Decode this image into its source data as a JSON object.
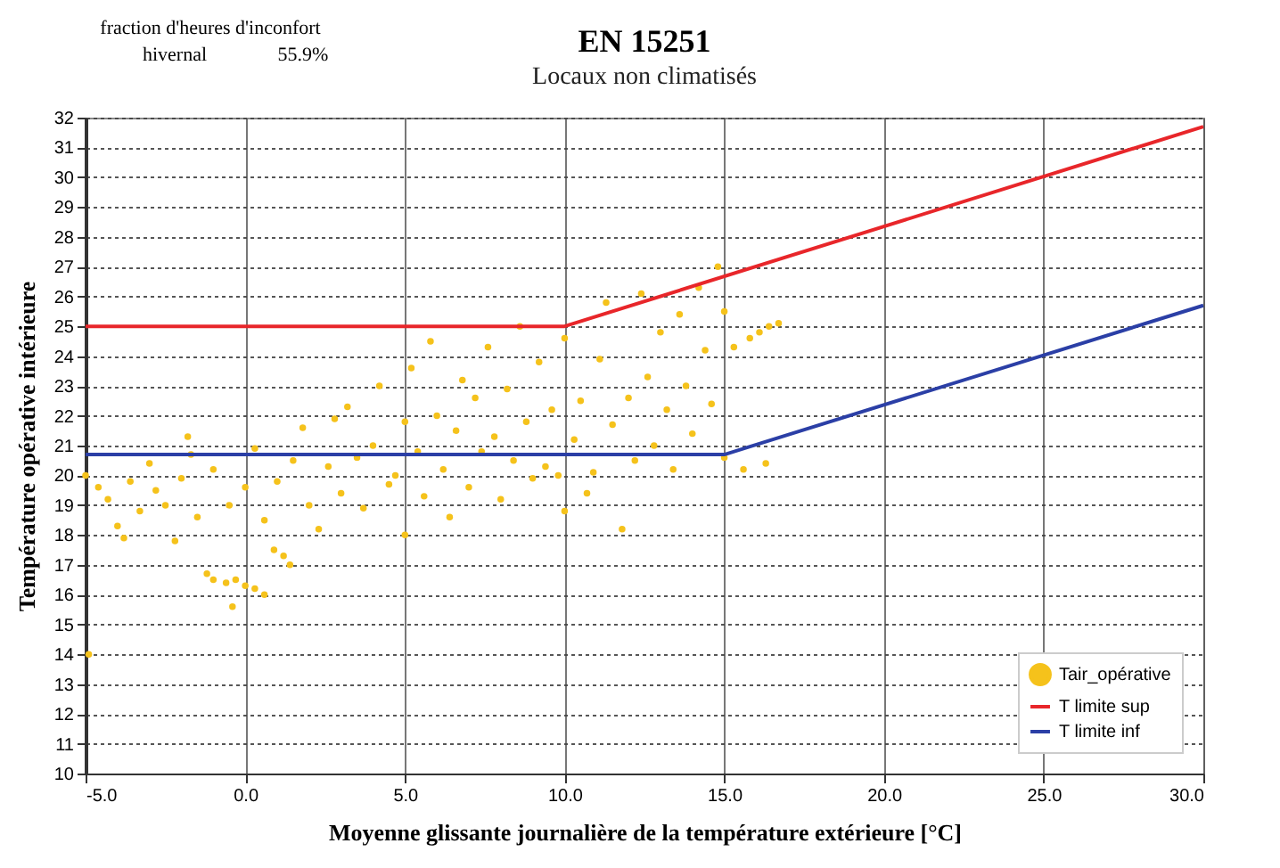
{
  "chart_data": {
    "type": "scatter",
    "title": "EN 15251",
    "subtitle": "Locaux non climatisés",
    "annotations": [
      "fraction d'heures d'inconfort",
      "hivernal",
      "55.9%"
    ],
    "xlabel": "Moyenne glissante journalière de la température extérieure [°C]",
    "ylabel": "Température opérative intérieure",
    "xlim": [
      -5,
      30
    ],
    "xticks": [
      {
        "value": -5,
        "label": "-5.0"
      },
      {
        "value": 0,
        "label": "0.0"
      },
      {
        "value": 5,
        "label": "5.0"
      },
      {
        "value": 10,
        "label": "10.0"
      },
      {
        "value": 15,
        "label": "15.0"
      },
      {
        "value": 20,
        "label": "20.0"
      },
      {
        "value": 25,
        "label": "25.0"
      },
      {
        "value": 30,
        "label": "30.0"
      }
    ],
    "ylim": [
      10,
      32
    ],
    "yticks": [
      10,
      11,
      12,
      13,
      14,
      15,
      16,
      17,
      18,
      19,
      20,
      21,
      22,
      23,
      24,
      25,
      26,
      27,
      28,
      29,
      30,
      31,
      32
    ],
    "grid": true,
    "legend": "bottom right",
    "series": [
      {
        "name": "Tair_opérative",
        "marker": "circle",
        "color": "#f5c21b",
        "x": [
          -5,
          -4.9,
          -4.6,
          -4.3,
          -4.0,
          -3.8,
          -3.6,
          -3.3,
          -3.0,
          -2.8,
          -2.5,
          -2.2,
          -2.0,
          -1.7,
          -1.5,
          -1.2,
          -1.0,
          -0.6,
          -0.3,
          0,
          0.3,
          0.6,
          -0.4,
          -1.8,
          -1.0,
          -0.5,
          0.0,
          0.3,
          0.6,
          0.9,
          1.2,
          1.4,
          1.0,
          1.5,
          1.8,
          2.0,
          2.3,
          2.6,
          2.8,
          3.0,
          3.2,
          3.5,
          3.7,
          4.0,
          4.2,
          4.5,
          4.7,
          5.0,
          5.0,
          5.2,
          5.4,
          5.6,
          5.8,
          6.0,
          6.2,
          6.4,
          6.6,
          6.8,
          7.0,
          7.2,
          7.4,
          7.6,
          7.8,
          8.0,
          8.2,
          8.4,
          8.6,
          8.8,
          9.0,
          9.2,
          9.4,
          9.6,
          9.8,
          10.0,
          10.0,
          10.3,
          10.5,
          10.7,
          10.9,
          11.1,
          11.3,
          11.5,
          11.8,
          12.0,
          12.2,
          12.4,
          12.6,
          12.8,
          13.0,
          13.2,
          13.4,
          13.6,
          13.8,
          14.0,
          14.2,
          14.4,
          14.6,
          14.8,
          15.0,
          15.0,
          15.3,
          15.6,
          15.8,
          16.1,
          16.4,
          16.7,
          16.3
        ],
        "values": [
          20.0,
          14.0,
          19.6,
          19.2,
          18.3,
          17.9,
          19.8,
          18.8,
          20.4,
          19.5,
          19.0,
          17.8,
          19.9,
          20.7,
          18.6,
          16.7,
          16.5,
          16.4,
          16.5,
          16.3,
          16.2,
          16.0,
          15.6,
          21.3,
          20.2,
          19.0,
          19.6,
          20.9,
          18.5,
          17.5,
          17.3,
          17.0,
          19.8,
          20.5,
          21.6,
          19.0,
          18.2,
          20.3,
          21.9,
          19.4,
          22.3,
          20.6,
          18.9,
          21.0,
          23.0,
          19.7,
          20.0,
          21.8,
          18.0,
          23.6,
          20.8,
          19.3,
          24.5,
          22.0,
          20.2,
          18.6,
          21.5,
          23.2,
          19.6,
          22.6,
          20.8,
          24.3,
          21.3,
          19.2,
          22.9,
          20.5,
          25.0,
          21.8,
          19.9,
          23.8,
          20.3,
          22.2,
          20.0,
          24.6,
          18.8,
          21.2,
          22.5,
          19.4,
          20.1,
          23.9,
          25.8,
          21.7,
          18.2,
          22.6,
          20.5,
          26.1,
          23.3,
          21.0,
          24.8,
          22.2,
          20.2,
          25.4,
          23.0,
          21.4,
          26.3,
          24.2,
          22.4,
          27.0,
          25.5,
          20.6,
          24.3,
          20.2,
          24.6,
          24.8,
          25.0,
          25.1,
          20.4
        ]
      },
      {
        "name": "T limite sup",
        "type": "line",
        "marker": "none",
        "color": "#e8262a",
        "x": [
          -5,
          10,
          30
        ],
        "values": [
          25,
          25,
          31.7
        ]
      },
      {
        "name": "T limite inf",
        "type": "line",
        "marker": "none",
        "color": "#2b3fa6",
        "x": [
          -5,
          15,
          30
        ],
        "values": [
          20.7,
          20.7,
          25.7
        ]
      }
    ]
  }
}
